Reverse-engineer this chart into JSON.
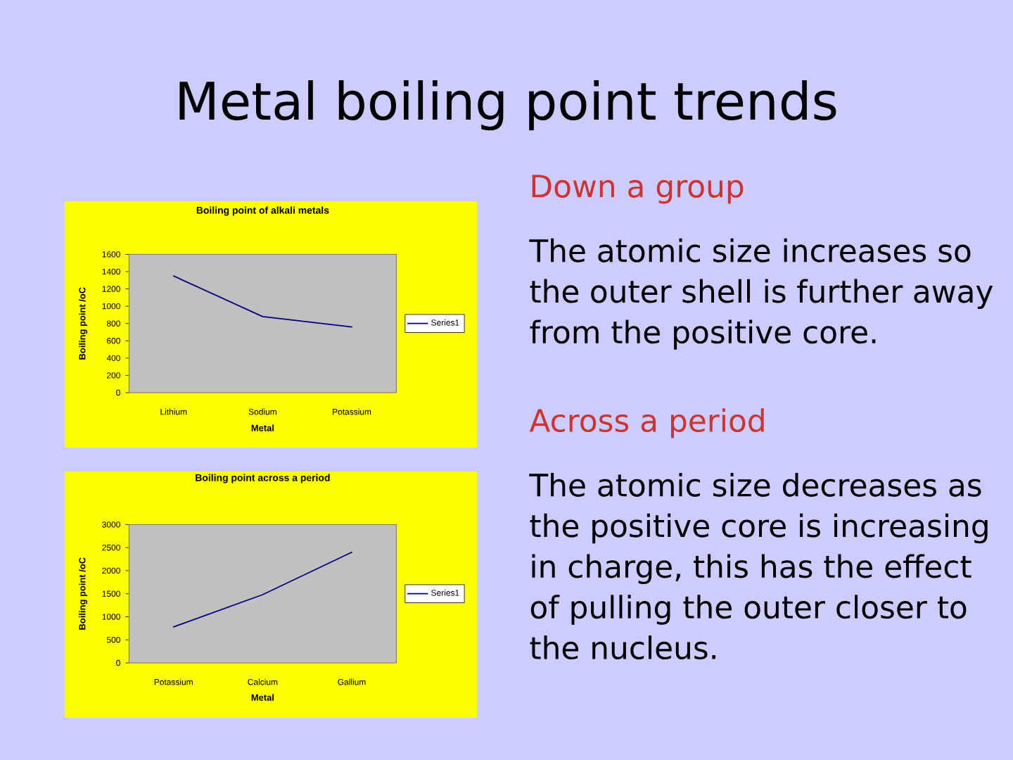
{
  "chart_data": [
    {
      "type": "other",
      "title": "Metal boiling point trends",
      "annotations": [
        "Down a group",
        "The atomic size increases so the outer shell is further away from the positive core.",
        "Across a period",
        "The atomic size decreases as the positive core is increasing in charge, this has the effect of pulling the outer closer to the nucleus."
      ]
    },
    {
      "type": "line",
      "title": "Boiling point of alkali metals",
      "xlabel": "Metal",
      "ylabel": "Boiling point /oC",
      "categories": [
        "Lithium",
        "Sodium",
        "Potassium"
      ],
      "series": [
        {
          "name": "Series1",
          "color": "#000080",
          "values": [
            1350,
            880,
            760
          ]
        }
      ],
      "ylim": [
        0,
        1600
      ],
      "yticks": [
        0,
        200,
        400,
        600,
        800,
        1000,
        1200,
        1400,
        1600
      ],
      "legend": "right"
    },
    {
      "type": "line",
      "title": "Boiling point across a period",
      "xlabel": "Metal",
      "ylabel": "Boiling point /oC",
      "categories": [
        "Potassium",
        "Calcium",
        "Gallium"
      ],
      "series": [
        {
          "name": "Series1",
          "color": "#000080",
          "values": [
            780,
            1480,
            2400
          ]
        }
      ],
      "ylim": [
        0,
        3000
      ],
      "yticks": [
        0,
        500,
        1000,
        1500,
        2000,
        2500,
        3000
      ],
      "legend": "right"
    }
  ]
}
